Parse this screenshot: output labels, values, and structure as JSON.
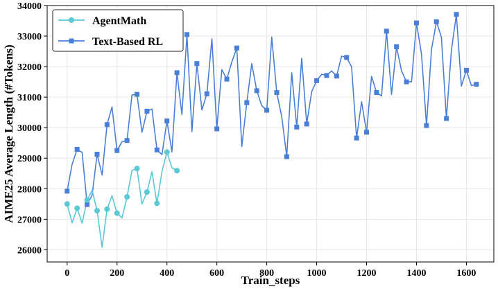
{
  "chart_data": {
    "type": "line",
    "xlabel": "Train_steps",
    "ylabel": "AIME25 Average Length (#Tokens)",
    "xlim": [
      -80,
      1710
    ],
    "ylim": [
      25600,
      34000
    ],
    "xticks": [
      0,
      200,
      400,
      600,
      800,
      1000,
      1200,
      1400,
      1600
    ],
    "xtick_labels": [
      "0",
      "200",
      "400",
      "600",
      "800",
      "1000",
      "1200",
      "1400",
      "1600"
    ],
    "yticks": [
      26000,
      27000,
      28000,
      29000,
      30000,
      31000,
      32000,
      33000,
      34000
    ],
    "ytick_labels": [
      "26000",
      "27000",
      "28000",
      "29000",
      "30000",
      "31000",
      "32000",
      "33000",
      "34000"
    ],
    "grid": true,
    "legend_position": "top-left",
    "series": [
      {
        "name": "AgentMath",
        "color": "#5bc8d4",
        "marker": "circle",
        "x": [
          0,
          20,
          40,
          60,
          80,
          100,
          120,
          140,
          160,
          180,
          200,
          220,
          240,
          260,
          280,
          300,
          320,
          340,
          360,
          380,
          400,
          420,
          440
        ],
        "y": [
          27500,
          26880,
          27360,
          26870,
          27630,
          27950,
          27280,
          26080,
          27330,
          27770,
          27200,
          27040,
          27730,
          28600,
          28660,
          27500,
          27890,
          28560,
          27520,
          28560,
          29200,
          28690,
          28590
        ],
        "marker_x": [
          0,
          40,
          80,
          120,
          160,
          200,
          240,
          280,
          320,
          360,
          400,
          440
        ],
        "marker_y": [
          27500,
          27360,
          27630,
          27280,
          27330,
          27200,
          27730,
          28660,
          27890,
          27520,
          29200,
          28590
        ]
      },
      {
        "name": "Text-Based RL",
        "color": "#4a7fd8",
        "marker": "square",
        "x": [
          0,
          20,
          40,
          60,
          80,
          100,
          120,
          140,
          160,
          180,
          200,
          220,
          240,
          260,
          280,
          300,
          320,
          340,
          360,
          380,
          400,
          420,
          440,
          460,
          480,
          500,
          520,
          540,
          560,
          580,
          600,
          620,
          640,
          660,
          680,
          700,
          720,
          740,
          760,
          780,
          800,
          820,
          840,
          860,
          880,
          900,
          920,
          940,
          960,
          980,
          1000,
          1020,
          1040,
          1060,
          1080,
          1100,
          1120,
          1140,
          1160,
          1180,
          1200,
          1220,
          1240,
          1260,
          1280,
          1300,
          1320,
          1340,
          1360,
          1380,
          1400,
          1420,
          1440,
          1460,
          1480,
          1500,
          1520,
          1540,
          1560,
          1580,
          1600,
          1620,
          1640
        ],
        "y": [
          27920,
          28800,
          29290,
          29190,
          27480,
          27790,
          29130,
          28450,
          30100,
          30680,
          29250,
          29540,
          29580,
          31070,
          31090,
          29850,
          30540,
          30610,
          29270,
          29120,
          30220,
          29210,
          31800,
          30430,
          33050,
          29870,
          32100,
          30580,
          31110,
          32910,
          29960,
          31900,
          31590,
          32150,
          32610,
          29380,
          30820,
          32100,
          31210,
          30720,
          30570,
          32970,
          31150,
          30360,
          29050,
          31800,
          30020,
          32270,
          30120,
          31180,
          31540,
          31750,
          31710,
          31860,
          31690,
          32340,
          32300,
          31990,
          29660,
          30850,
          29850,
          31680,
          31150,
          31040,
          33160,
          31090,
          32650,
          31860,
          31500,
          31500,
          33430,
          32410,
          30070,
          32560,
          33470,
          32960,
          30300,
          32530,
          33710,
          31360,
          31880,
          31380,
          31420
        ],
        "marker_x": [
          0,
          40,
          80,
          120,
          160,
          200,
          240,
          280,
          320,
          360,
          400,
          440,
          480,
          520,
          560,
          600,
          640,
          680,
          720,
          760,
          800,
          840,
          880,
          920,
          960,
          1000,
          1040,
          1080,
          1120,
          1160,
          1200,
          1240,
          1280,
          1320,
          1360,
          1400,
          1440,
          1480,
          1520,
          1560,
          1600,
          1640
        ],
        "marker_y": [
          27920,
          29290,
          27480,
          29130,
          30100,
          29250,
          29580,
          31090,
          30540,
          29270,
          30220,
          31800,
          33050,
          32100,
          31110,
          29960,
          31590,
          32610,
          30820,
          31210,
          30570,
          31150,
          29050,
          30020,
          30120,
          31540,
          31710,
          31690,
          32300,
          29660,
          29850,
          31150,
          33160,
          32650,
          31500,
          33430,
          30070,
          33470,
          30300,
          33710,
          31880,
          31420
        ]
      }
    ]
  }
}
